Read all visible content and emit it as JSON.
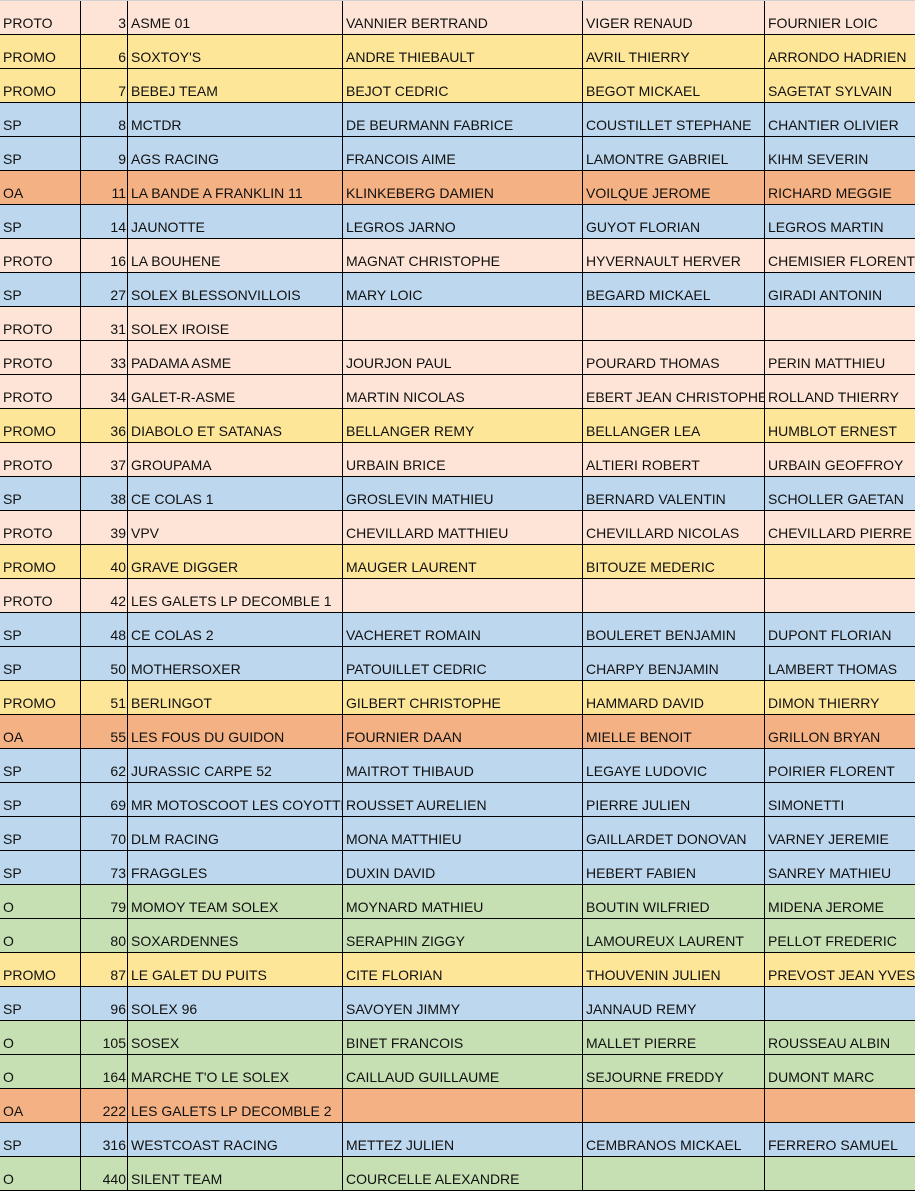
{
  "category_colors": {
    "PROTO": "#fde4d6",
    "PROMO": "#fee699",
    "SP": "#bdd7ee",
    "OA": "#f4b183",
    "O": "#c6e0b4"
  },
  "rows": [
    [
      "PROTO",
      "3",
      "ASME 01",
      "VANNIER BERTRAND",
      "VIGER RENAUD",
      "FOURNIER LOIC"
    ],
    [
      "PROMO",
      "6",
      "SOXTOY'S",
      "ANDRE THIEBAULT",
      "AVRIL THIERRY",
      "ARRONDO HADRIEN"
    ],
    [
      "PROMO",
      "7",
      "BEBEJ TEAM",
      "BEJOT CEDRIC",
      "BEGOT MICKAEL",
      "SAGETAT SYLVAIN"
    ],
    [
      "SP",
      "8",
      "MCTDR",
      "DE  BEURMANN FABRICE",
      "COUSTILLET STEPHANE",
      "CHANTIER OLIVIER"
    ],
    [
      "SP",
      "9",
      "AGS RACING",
      "FRANCOIS AIME",
      "LAMONTRE GABRIEL",
      "KIHM SEVERIN"
    ],
    [
      "OA",
      "11",
      "LA BANDE A FRANKLIN 11",
      "KLINKEBERG DAMIEN",
      "VOILQUE JEROME",
      "RICHARD MEGGIE"
    ],
    [
      "SP",
      "14",
      "JAUNOTTE",
      "LEGROS JARNO",
      "GUYOT FLORIAN",
      "LEGROS  MARTIN"
    ],
    [
      "PROTO",
      "16",
      "LA BOUHENE",
      "MAGNAT CHRISTOPHE",
      "HYVERNAULT HERVER",
      "CHEMISIER FLORENT"
    ],
    [
      "SP",
      "27",
      " SOLEX BLESSONVILLOIS",
      "MARY LOIC",
      "BEGARD MICKAEL",
      "GIRADI ANTONIN"
    ],
    [
      "PROTO",
      "31",
      "SOLEX IROISE",
      "",
      "",
      ""
    ],
    [
      "PROTO",
      "33",
      "PADAMA ASME",
      "JOURJON PAUL",
      "POURARD THOMAS",
      "PERIN MATTHIEU"
    ],
    [
      "PROTO",
      "34",
      "GALET-R-ASME",
      "MARTIN NICOLAS",
      "EBERT JEAN CHRISTOPHE",
      "ROLLAND THIERRY"
    ],
    [
      "PROMO",
      "36",
      "DIABOLO ET SATANAS",
      "BELLANGER REMY",
      "BELLANGER LEA",
      "HUMBLOT ERNEST"
    ],
    [
      "PROTO",
      "37",
      "GROUPAMA",
      "URBAIN BRICE",
      "ALTIERI ROBERT",
      "URBAIN GEOFFROY"
    ],
    [
      "SP",
      "38",
      "CE COLAS 1",
      "GROSLEVIN MATHIEU",
      "BERNARD VALENTIN",
      "SCHOLLER GAETAN"
    ],
    [
      "PROTO",
      "39",
      "VPV",
      "CHEVILLARD MATTHIEU",
      "CHEVILLARD NICOLAS",
      "CHEVILLARD PIERRE"
    ],
    [
      "PROMO",
      "40",
      "GRAVE DIGGER",
      "MAUGER LAURENT",
      "BITOUZE MEDERIC",
      ""
    ],
    [
      "PROTO",
      "42",
      "LES GALETS LP DECOMBLE 1",
      "",
      "",
      ""
    ],
    [
      "SP",
      "48",
      "CE COLAS 2",
      "VACHERET ROMAIN",
      "BOULERET BENJAMIN",
      "DUPONT FLORIAN"
    ],
    [
      "SP",
      "50",
      "MOTHERSOXER",
      "PATOUILLET CEDRIC",
      "CHARPY BENJAMIN",
      "LAMBERT THOMAS"
    ],
    [
      "PROMO",
      "51",
      "BERLINGOT",
      "GILBERT CHRISTOPHE",
      "HAMMARD DAVID",
      "DIMON THIERRY"
    ],
    [
      "OA",
      "55",
      "LES FOUS DU GUIDON",
      "FOURNIER DAAN",
      "MIELLE BENOIT",
      "GRILLON BRYAN"
    ],
    [
      "SP",
      "62",
      "JURASSIC CARPE 52",
      "MAITROT THIBAUD",
      "LEGAYE LUDOVIC",
      "POIRIER FLORENT"
    ],
    [
      "SP",
      "69",
      "MR MOTOSCOOT LES COYOTTES",
      "ROUSSET AURELIEN",
      "PIERRE JULIEN",
      "SIMONETTI"
    ],
    [
      "SP",
      "70",
      "DLM RACING",
      "MONA MATTHIEU",
      "GAILLARDET DONOVAN",
      "VARNEY JEREMIE"
    ],
    [
      "SP",
      "73",
      "FRAGGLES",
      "DUXIN DAVID",
      "HEBERT FABIEN",
      "SANREY MATHIEU"
    ],
    [
      "O",
      "79",
      "MOMOY TEAM SOLEX",
      "MOYNARD MATHIEU",
      "BOUTIN WILFRIED",
      "MIDENA JEROME"
    ],
    [
      "O",
      "80",
      "SOXARDENNES",
      "SERAPHIN ZIGGY",
      "LAMOUREUX LAURENT",
      "PELLOT FREDERIC"
    ],
    [
      "PROMO",
      "87",
      "LE GALET DU PUITS",
      "CITE FLORIAN",
      "THOUVENIN JULIEN",
      "PREVOST JEAN YVES"
    ],
    [
      "SP",
      "96",
      "SOLEX 96",
      "SAVOYEN JIMMY",
      "JANNAUD REMY",
      ""
    ],
    [
      "O",
      "105",
      "SOSEX",
      "BINET FRANCOIS",
      "MALLET PIERRE",
      "ROUSSEAU ALBIN"
    ],
    [
      "O",
      "164",
      "MARCHE T'O LE SOLEX",
      "CAILLAUD GUILLAUME",
      "SEJOURNE FREDDY",
      "DUMONT MARC"
    ],
    [
      "OA",
      "222",
      "LES GALETS LP DECOMBLE 2",
      "",
      "",
      ""
    ],
    [
      "SP",
      "316",
      "WESTCOAST RACING",
      "METTEZ JULIEN",
      "CEMBRANOS MICKAEL",
      "FERRERO SAMUEL"
    ],
    [
      "O",
      "440",
      "SILENT TEAM",
      "COURCELLE ALEXANDRE",
      "",
      ""
    ]
  ]
}
